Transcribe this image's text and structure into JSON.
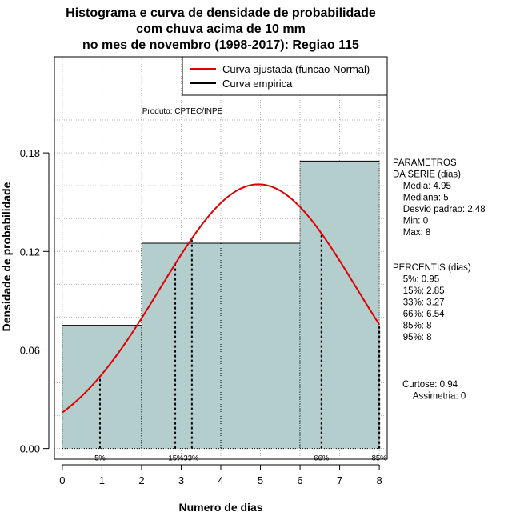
{
  "chart_data": {
    "type": "bar",
    "title_lines": [
      "Histograma e curva de densidade de probabilidade",
      "com chuva acima de 10 mm",
      "no mes de novembro (1998-2017): Regiao 115"
    ],
    "xlabel": "Numero de dias",
    "ylabel": "Densidade de probabilidade",
    "xlim": [
      -0.2,
      8.2
    ],
    "ylim": [
      -0.0065,
      0.2385
    ],
    "x_ticks": [
      0,
      1,
      2,
      3,
      4,
      5,
      6,
      7,
      8
    ],
    "y_ticks": [
      0.0,
      0.06,
      0.12,
      0.18
    ],
    "y_tick_labels": [
      "0.00",
      "0.06",
      "0.12",
      "0.18"
    ],
    "grid": true,
    "bins": [
      {
        "x0": 0,
        "x1": 2,
        "density": 0.075
      },
      {
        "x0": 2,
        "x1": 4,
        "density": 0.125
      },
      {
        "x0": 4,
        "x1": 6,
        "density": 0.125
      },
      {
        "x0": 6,
        "x1": 8,
        "density": 0.175
      }
    ],
    "normal_curve": {
      "mean": 4.95,
      "sd": 2.48,
      "x_range": [
        0,
        8
      ]
    },
    "legend": {
      "position": "top-right",
      "entries": [
        {
          "label": "Curva ajustada (funcao Normal)",
          "color": "#dd0000"
        },
        {
          "label": "Curva empirica",
          "color": "#000000"
        }
      ]
    },
    "product_label": "Produto: CPTEC/INPE",
    "percentiles": [
      {
        "x": 0.95,
        "label": "5%"
      },
      {
        "x": 2.85,
        "label": "15%"
      },
      {
        "x": 3.27,
        "label": "33%"
      },
      {
        "x": 6.54,
        "label": "66%"
      },
      {
        "x": 8,
        "label": "85%"
      },
      {
        "x": 8,
        "label": ""
      }
    ],
    "percentile_label_text": "15%33%",
    "parameters_block": [
      "PARAMETROS",
      "DA SERIE (dias)",
      "  Media: 4.95",
      "  Mediana: 5",
      "  Desvio padrao: 2.48",
      "  Min: 0",
      "  Max: 8"
    ],
    "percentis_block": [
      "PERCENTIS (dias)",
      "  5%: 0.95",
      "  15%: 2.85",
      "  33%: 3.27",
      "  66%: 6.54",
      "  85%: 8",
      "  95%: 8"
    ],
    "shape_block": [
      "Curtose: 0.94",
      "  Assimetria: 0"
    ],
    "colors": {
      "bar_fill": "#b4cece",
      "curve": "#dd0000",
      "grid": "#b0b0b0"
    }
  }
}
